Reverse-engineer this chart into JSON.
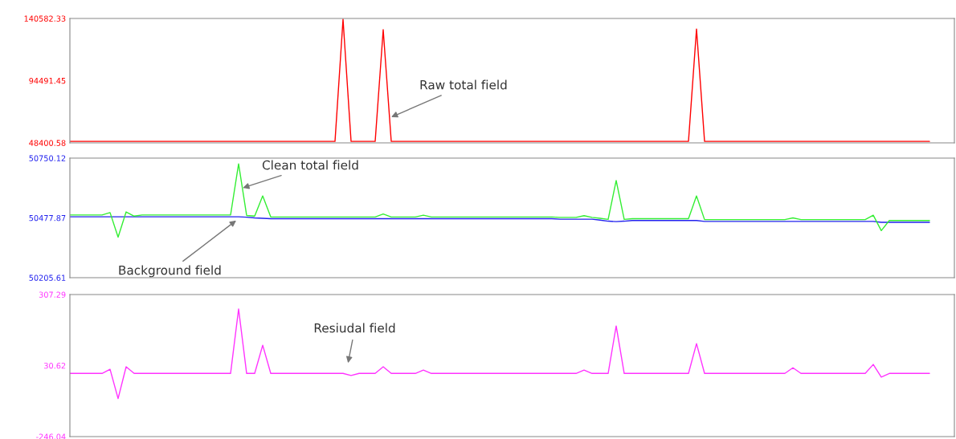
{
  "chart_data": [
    {
      "type": "line",
      "categories": [
        null,
        null,
        null,
        null,
        null,
        null,
        null,
        null,
        null,
        null,
        null,
        null,
        null,
        null,
        null,
        null,
        null,
        null,
        null,
        null,
        null,
        null,
        null,
        null,
        null,
        null,
        null,
        null,
        null,
        null,
        null,
        null,
        null,
        null,
        null,
        null,
        null,
        null,
        null,
        null,
        null,
        null,
        null,
        null,
        null,
        null,
        null,
        null,
        null,
        null,
        null,
        null,
        null,
        null,
        null,
        null,
        null,
        null,
        null,
        null,
        null,
        null,
        null,
        null,
        null,
        null,
        null,
        null,
        null,
        null,
        null,
        null,
        null,
        null,
        null,
        null,
        null,
        null,
        null,
        null,
        null,
        null,
        null,
        null,
        null,
        null,
        null,
        null,
        null,
        null,
        null,
        null,
        null,
        null,
        null,
        null,
        null,
        null,
        null,
        null,
        null,
        null,
        null,
        null,
        null,
        null,
        null,
        null
      ],
      "series": [
        {
          "color": "#ff0000",
          "values": [
            49500,
            49500,
            49500,
            49500,
            49500,
            49500,
            49500,
            49500,
            49500,
            49500,
            49500,
            49500,
            49500,
            49500,
            49500,
            49500,
            49500,
            49500,
            49500,
            49500,
            49500,
            49500,
            49500,
            49500,
            49500,
            49500,
            49500,
            49500,
            49500,
            49500,
            49500,
            49500,
            49500,
            49500,
            140000,
            49500,
            49500,
            49500,
            49500,
            132300,
            49500,
            49500,
            49500,
            49500,
            49500,
            49500,
            49500,
            49500,
            49500,
            49500,
            49500,
            49500,
            49500,
            49500,
            49500,
            49500,
            49500,
            49500,
            49500,
            49500,
            49500,
            49500,
            49500,
            49500,
            49500,
            49500,
            49500,
            49500,
            49500,
            49500,
            49500,
            49500,
            49500,
            49500,
            49500,
            49500,
            49500,
            49500,
            132800,
            49500,
            49500,
            49500,
            49500,
            49500,
            49500,
            49500,
            49500,
            49500,
            49500,
            49500,
            49500,
            49500,
            49500,
            49500,
            49500,
            49500,
            49500,
            49500,
            49500,
            49500,
            49500,
            49500,
            49500,
            49500,
            49500,
            49500,
            49500,
            49500
          ]
        }
      ],
      "ylim": [
        48400.58,
        140582.33
      ],
      "yticks": [
        48400.58,
        94491.45,
        140582.33
      ],
      "tick_labels": "y",
      "grid": false,
      "legend": false,
      "annotations": [
        "Raw total field"
      ]
    },
    {
      "type": "line",
      "categories": [
        null,
        null,
        null,
        null,
        null,
        null,
        null,
        null,
        null,
        null,
        null,
        null,
        null,
        null,
        null,
        null,
        null,
        null,
        null,
        null,
        null,
        null,
        null,
        null,
        null,
        null,
        null,
        null,
        null,
        null,
        null,
        null,
        null,
        null,
        null,
        null,
        null,
        null,
        null,
        null,
        null,
        null,
        null,
        null,
        null,
        null,
        null,
        null,
        null,
        null,
        null,
        null,
        null,
        null,
        null,
        null,
        null,
        null,
        null,
        null,
        null,
        null,
        null,
        null,
        null,
        null,
        null,
        null,
        null,
        null,
        null,
        null,
        null,
        null,
        null,
        null,
        null,
        null,
        null,
        null,
        null,
        null,
        null,
        null,
        null,
        null,
        null,
        null,
        null,
        null,
        null,
        null,
        null,
        null,
        null,
        null,
        null,
        null,
        null,
        null,
        null,
        null,
        null,
        null,
        null,
        null,
        null,
        null
      ],
      "series": [
        {
          "color": "#2222ee",
          "values": [
            50483,
            50483,
            50483,
            50483,
            50483,
            50483,
            50483,
            50483,
            50483,
            50483,
            50483,
            50483,
            50483,
            50483,
            50483,
            50483,
            50483,
            50483,
            50483,
            50483,
            50483,
            50483,
            50481,
            50478,
            50476,
            50474,
            50474,
            50474,
            50474,
            50474,
            50474,
            50474,
            50474,
            50474,
            50474,
            50474,
            50474,
            50474,
            50474,
            50474,
            50474,
            50474,
            50474,
            50474,
            50474,
            50474,
            50474,
            50474,
            50474,
            50474,
            50474,
            50474,
            50474,
            50474,
            50474,
            50474,
            50474,
            50474,
            50474,
            50474,
            50474,
            50472,
            50472,
            50472,
            50472,
            50472,
            50468,
            50463,
            50461,
            50463,
            50466,
            50466,
            50466,
            50466,
            50466,
            50466,
            50466,
            50466,
            50466,
            50462,
            50462,
            50462,
            50462,
            50462,
            50462,
            50462,
            50462,
            50462,
            50462,
            50462,
            50462,
            50462,
            50462,
            50462,
            50462,
            50462,
            50462,
            50462,
            50462,
            50462,
            50462,
            50458,
            50458,
            50458,
            50458,
            50458,
            50458,
            50458
          ]
        },
        {
          "color": "#33ee33",
          "values": [
            50491,
            50491,
            50491,
            50491,
            50491,
            50502,
            50390,
            50505,
            50486,
            50491,
            50491,
            50491,
            50491,
            50491,
            50491,
            50491,
            50491,
            50491,
            50491,
            50491,
            50491,
            50724,
            50489,
            50486,
            50578,
            50482,
            50482,
            50482,
            50482,
            50482,
            50482,
            50482,
            50482,
            50482,
            50482,
            50482,
            50482,
            50482,
            50482,
            50496,
            50482,
            50482,
            50482,
            50482,
            50490,
            50482,
            50482,
            50482,
            50482,
            50482,
            50482,
            50482,
            50482,
            50482,
            50482,
            50482,
            50482,
            50482,
            50482,
            50482,
            50482,
            50480,
            50480,
            50480,
            50488,
            50480,
            50476,
            50471,
            50648,
            50471,
            50474,
            50474,
            50474,
            50474,
            50474,
            50474,
            50474,
            50474,
            50578,
            50470,
            50470,
            50470,
            50470,
            50470,
            50470,
            50470,
            50470,
            50470,
            50470,
            50470,
            50478,
            50470,
            50470,
            50470,
            50470,
            50470,
            50470,
            50470,
            50470,
            50470,
            50490,
            50420,
            50466,
            50466,
            50466,
            50466,
            50466,
            50466
          ]
        }
      ],
      "ylim": [
        50205.61,
        50750.12
      ],
      "yticks": [
        50205.61,
        50477.87,
        50750.12
      ],
      "tick_labels": "y",
      "grid": false,
      "legend": false,
      "annotations": [
        "Clean total field",
        "Background field"
      ]
    },
    {
      "type": "line",
      "categories": [
        null,
        null,
        null,
        null,
        null,
        null,
        null,
        null,
        null,
        null,
        null,
        null,
        null,
        null,
        null,
        null,
        null,
        null,
        null,
        null,
        null,
        null,
        null,
        null,
        null,
        null,
        null,
        null,
        null,
        null,
        null,
        null,
        null,
        null,
        null,
        null,
        null,
        null,
        null,
        null,
        null,
        null,
        null,
        null,
        null,
        null,
        null,
        null,
        null,
        null,
        null,
        null,
        null,
        null,
        null,
        null,
        null,
        null,
        null,
        null,
        null,
        null,
        null,
        null,
        null,
        null,
        null,
        null,
        null,
        null,
        null,
        null,
        null,
        null,
        null,
        null,
        null,
        null,
        null,
        null,
        null,
        null,
        null,
        null,
        null,
        null,
        null,
        null,
        null,
        null,
        null,
        null,
        null,
        null,
        null,
        null,
        null,
        null,
        null,
        null,
        null,
        null,
        null,
        null,
        null,
        null,
        null,
        null
      ],
      "series": [
        {
          "color": "#ff33ff",
          "values": [
            0,
            0,
            0,
            0,
            0,
            16,
            -98,
            26,
            0,
            0,
            0,
            0,
            0,
            0,
            0,
            0,
            0,
            0,
            0,
            0,
            0,
            251,
            0,
            0,
            110,
            0,
            0,
            0,
            0,
            0,
            0,
            0,
            0,
            0,
            0,
            -8,
            0,
            0,
            0,
            26,
            0,
            0,
            0,
            0,
            13,
            0,
            0,
            0,
            0,
            0,
            0,
            0,
            0,
            0,
            0,
            0,
            0,
            0,
            0,
            0,
            0,
            0,
            0,
            0,
            13,
            0,
            0,
            0,
            185,
            0,
            0,
            0,
            0,
            0,
            0,
            0,
            0,
            0,
            116,
            0,
            0,
            0,
            0,
            0,
            0,
            0,
            0,
            0,
            0,
            0,
            22,
            0,
            0,
            0,
            0,
            0,
            0,
            0,
            0,
            0,
            35,
            -14,
            0,
            0,
            0,
            0,
            0,
            0
          ]
        }
      ],
      "ylim": [
        -246.04,
        307.29
      ],
      "yticks": [
        -246.04,
        30.62,
        307.29
      ],
      "tick_labels": "y",
      "grid": false,
      "legend": false,
      "annotations": [
        "Resiudal field"
      ]
    }
  ]
}
